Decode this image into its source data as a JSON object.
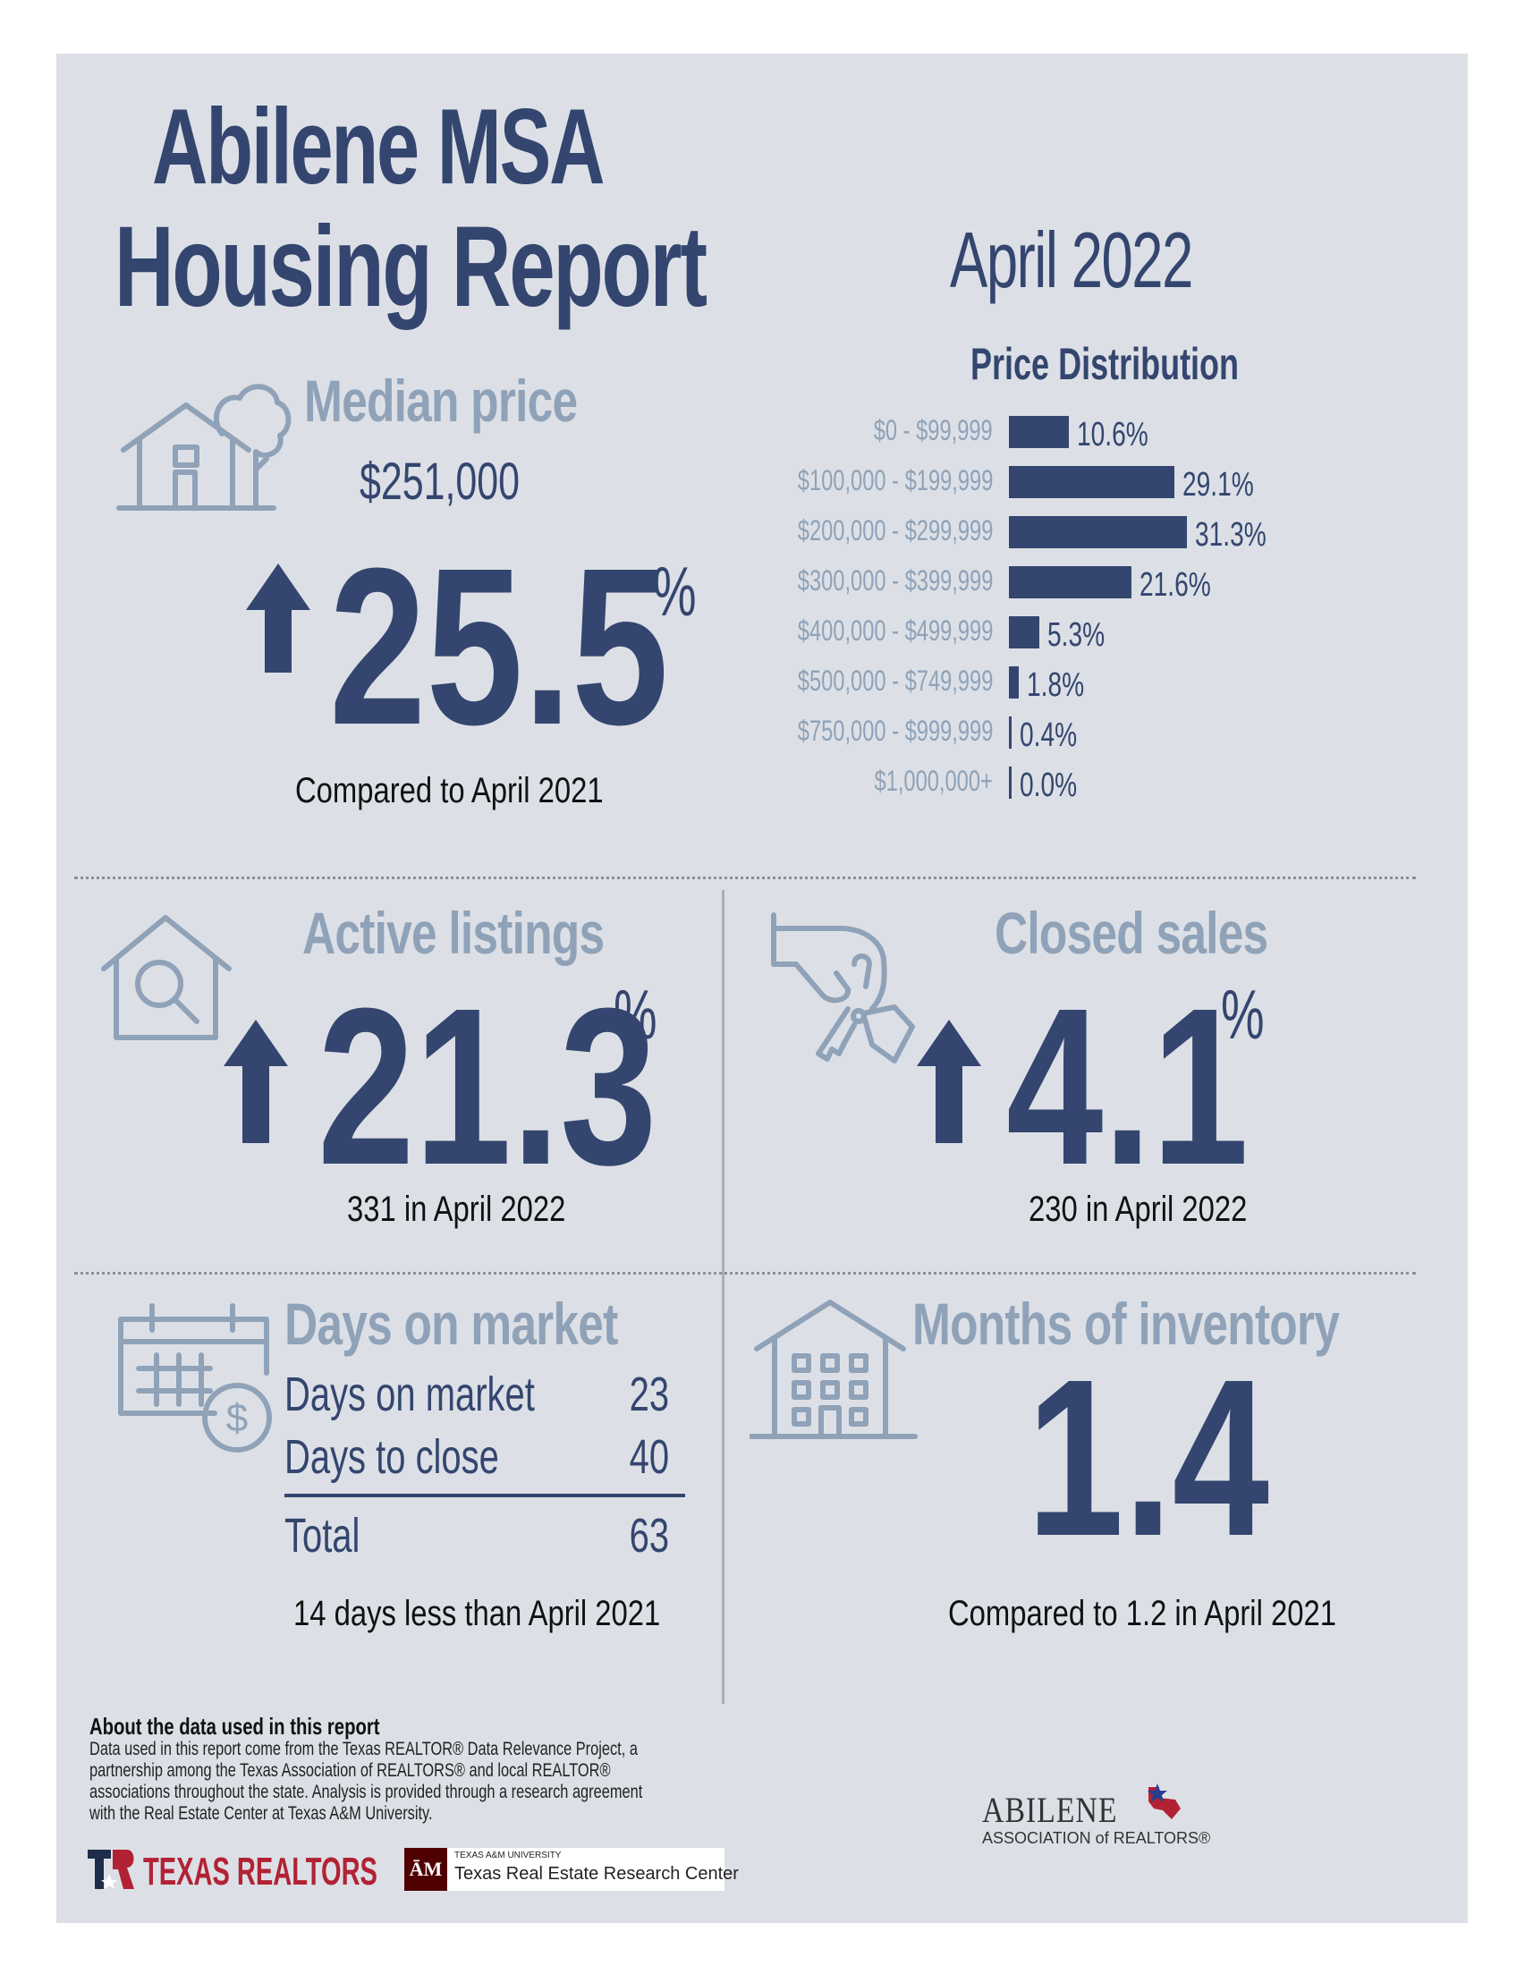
{
  "header": {
    "title_line1": "Abilene MSA",
    "title_line2": "Housing Report",
    "month": "April 2022"
  },
  "median_price": {
    "label": "Median price",
    "value": "$251,000",
    "change": "25.5",
    "unit": "%",
    "direction": "up",
    "caption": "Compared to April 2021"
  },
  "price_distribution": {
    "title": "Price Distribution",
    "bar_color": "#34466f"
  },
  "chart_data": {
    "type": "bar",
    "orientation": "horizontal",
    "title": "Price Distribution",
    "categories": [
      "$0 - $99,999",
      "$100,000 - $199,999",
      "$200,000 - $299,999",
      "$300,000 - $399,999",
      "$400,000 - $499,999",
      "$500,000 - $749,999",
      "$750,000 - $999,999",
      "$1,000,000+"
    ],
    "values": [
      10.6,
      29.1,
      31.3,
      21.6,
      5.3,
      1.8,
      0.4,
      0.0
    ],
    "value_labels": [
      "10.6%",
      "29.1%",
      "31.3%",
      "21.6%",
      "5.3%",
      "1.8%",
      "0.4%",
      "0.0%"
    ]
  },
  "active_listings": {
    "label": "Active listings",
    "change": "21.3",
    "unit": "%",
    "direction": "up",
    "caption": "331 in April 2022"
  },
  "closed_sales": {
    "label": "Closed sales",
    "change": "4.1",
    "unit": "%",
    "direction": "up",
    "caption": "230 in April 2022"
  },
  "days_on_market": {
    "label": "Days on market",
    "rows": [
      {
        "label": "Days on market",
        "value": "23"
      },
      {
        "label": "Days to close",
        "value": "40"
      }
    ],
    "total_label": "Total",
    "total_value": "63",
    "caption": "14 days less than April 2021"
  },
  "months_inventory": {
    "label": "Months of inventory",
    "value": "1.4",
    "caption": "Compared to 1.2 in April 2021"
  },
  "footer": {
    "about_title": "About the data used in this report",
    "about_lines": [
      "Data used in this report come from the Texas REALTOR® Data Relevance Project, a",
      "partnership among the Texas Association of REALTORS® and local REALTOR®",
      "associations throughout the state. Analysis is provided through a research agreement",
      "with the Real Estate Center at Texas A&M University."
    ],
    "texas_realtors": "TEXAS REALTORS",
    "tamu_small": "TEXAS A&M UNIVERSITY",
    "tamu_name": "Texas Real Estate Research Center",
    "abilene_name": "ABILENE",
    "abilene_sub": "ASSOCIATION of REALTORS®"
  },
  "colors": {
    "navy": "#34466f",
    "muted": "#8fa2b8",
    "background": "#dce0e6",
    "red": "#b22234"
  }
}
